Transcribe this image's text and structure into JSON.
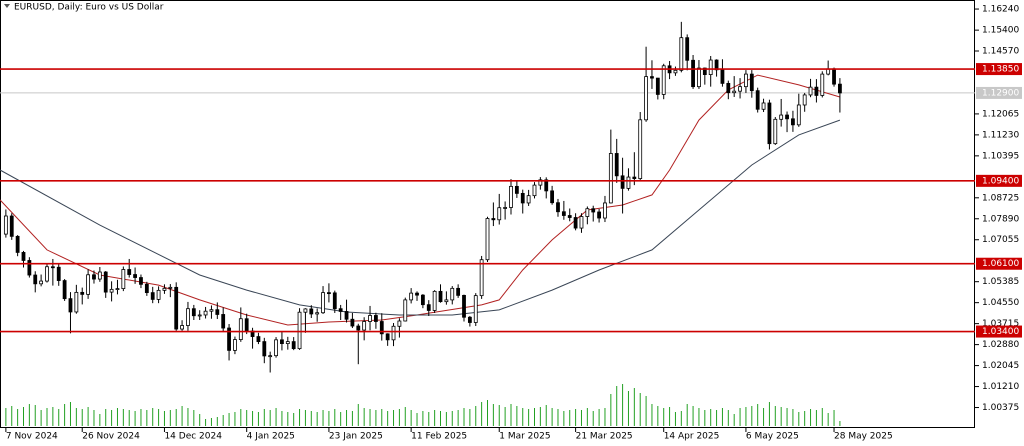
{
  "chart_data": {
    "type": "candlestick",
    "title": "EURUSD, Daily:  Euro vs US Dollar",
    "xlim": [
      -1,
      165
    ],
    "ylim": [
      0.9956,
      1.166
    ],
    "xticks": [
      {
        "value": 0,
        "label": "7 Nov 2024"
      },
      {
        "value": 13,
        "label": "26 Nov 2024"
      },
      {
        "value": 27,
        "label": "14 Dec 2024"
      },
      {
        "value": 41,
        "label": "4 Jan 2025"
      },
      {
        "value": 55,
        "label": "23 Jan 2025"
      },
      {
        "value": 69,
        "label": "11 Feb 2025"
      },
      {
        "value": 84,
        "label": "1 Mar 2025"
      },
      {
        "value": 97,
        "label": "21 Mar 2025"
      },
      {
        "value": 112,
        "label": "14 Apr 2025"
      },
      {
        "value": 126,
        "label": "6 May 2025"
      },
      {
        "value": 141,
        "label": "28 May 2025"
      }
    ],
    "yticks": [
      {
        "value": 1.1624,
        "label": "1.16240"
      },
      {
        "value": 1.154,
        "label": "1.15400"
      },
      {
        "value": 1.1457,
        "label": "1.14570"
      },
      {
        "value": 1.12065,
        "label": "1.12065"
      },
      {
        "value": 1.1123,
        "label": "1.11230"
      },
      {
        "value": 1.10395,
        "label": "1.10395"
      },
      {
        "value": 1.08725,
        "label": "1.08725"
      },
      {
        "value": 1.0789,
        "label": "1.07890"
      },
      {
        "value": 1.07055,
        "label": "1.07055"
      },
      {
        "value": 1.05385,
        "label": "1.05385"
      },
      {
        "value": 1.0455,
        "label": "1.04550"
      },
      {
        "value": 1.03715,
        "label": "1.03715"
      },
      {
        "value": 1.0288,
        "label": "1.02880"
      },
      {
        "value": 1.02045,
        "label": "1.02045"
      },
      {
        "value": 1.0121,
        "label": "1.01210"
      },
      {
        "value": 1.00375,
        "label": "1.00375"
      }
    ],
    "levels": [
      {
        "value": 1.1385,
        "label": "1.13850"
      },
      {
        "value": 1.094,
        "label": "1.09400"
      },
      {
        "value": 1.061,
        "label": "1.06100"
      },
      {
        "value": 1.034,
        "label": "1.03400"
      }
    ],
    "level_color": "#cc0000",
    "price_line": {
      "value": 1.129,
      "label": "1.12900"
    },
    "bull_color": "#ffffff",
    "bear_color": "#000000",
    "volume_color": "#22a022",
    "candles": [
      [
        1.0728,
        1.0826,
        1.0714,
        1.08
      ],
      [
        1.08,
        1.0811,
        1.0705,
        1.0719
      ],
      [
        1.0719,
        1.0724,
        1.064,
        1.0655
      ],
      [
        1.0655,
        1.0661,
        1.0595,
        1.0623
      ],
      [
        1.0623,
        1.0636,
        1.0555,
        1.0565
      ],
      [
        1.0565,
        1.058,
        1.0496,
        1.053
      ],
      [
        1.053,
        1.0567,
        1.052,
        1.0541
      ],
      [
        1.0541,
        1.0609,
        1.0535,
        1.0598
      ],
      [
        1.0598,
        1.0629,
        1.0523,
        1.0596
      ],
      [
        1.0596,
        1.061,
        1.0522,
        1.0543
      ],
      [
        1.0543,
        1.0549,
        1.0462,
        1.0471
      ],
      [
        1.0471,
        1.0497,
        1.0333,
        1.0418
      ],
      [
        1.0418,
        1.0526,
        1.0411,
        1.0496
      ],
      [
        1.0496,
        1.0515,
        1.0448,
        1.0488
      ],
      [
        1.0488,
        1.0588,
        1.047,
        1.0566
      ],
      [
        1.0566,
        1.0583,
        1.0531,
        1.0549
      ],
      [
        1.0549,
        1.0597,
        1.0538,
        1.0577
      ],
      [
        1.0577,
        1.0581,
        1.0474,
        1.0497
      ],
      [
        1.0497,
        1.054,
        1.046,
        1.0508
      ],
      [
        1.0508,
        1.0546,
        1.0488,
        1.0511
      ],
      [
        1.0511,
        1.0599,
        1.0501,
        1.0587
      ],
      [
        1.0587,
        1.0629,
        1.0555,
        1.0567
      ],
      [
        1.0567,
        1.0595,
        1.053,
        1.0555
      ],
      [
        1.0555,
        1.0567,
        1.0513,
        1.0528
      ],
      [
        1.0528,
        1.0538,
        1.0482,
        1.0495
      ],
      [
        1.0495,
        1.0518,
        1.0453,
        1.0468
      ],
      [
        1.0468,
        1.052,
        1.0453,
        1.0504
      ],
      [
        1.0504,
        1.0528,
        1.049,
        1.0512
      ],
      [
        1.0512,
        1.0529,
        1.0477,
        1.0516
      ],
      [
        1.0516,
        1.0536,
        1.0343,
        1.035
      ],
      [
        1.035,
        1.0385,
        1.0343,
        1.0364
      ],
      [
        1.0364,
        1.0458,
        1.0343,
        1.0431
      ],
      [
        1.0431,
        1.0446,
        1.0386,
        1.0403
      ],
      [
        1.0403,
        1.0425,
        1.0386,
        1.0406
      ],
      [
        1.0406,
        1.0438,
        1.0392,
        1.0421
      ],
      [
        1.0421,
        1.0444,
        1.0391,
        1.0427
      ],
      [
        1.0427,
        1.0456,
        1.039,
        1.0408
      ],
      [
        1.0408,
        1.0436,
        1.034,
        1.0354
      ],
      [
        1.0354,
        1.037,
        1.0225,
        1.0265
      ],
      [
        1.0265,
        1.032,
        1.025,
        1.0308
      ],
      [
        1.0308,
        1.0436,
        1.0299,
        1.0391
      ],
      [
        1.0391,
        1.0411,
        1.033,
        1.0342
      ],
      [
        1.0342,
        1.0355,
        1.0272,
        1.032
      ],
      [
        1.032,
        1.0335,
        1.029,
        1.03
      ],
      [
        1.03,
        1.0315,
        1.0214,
        1.0243
      ],
      [
        1.0243,
        1.026,
        1.0177,
        1.0244
      ],
      [
        1.0244,
        1.0318,
        1.0236,
        1.0307
      ],
      [
        1.0307,
        1.0342,
        1.0265,
        1.0292
      ],
      [
        1.0292,
        1.0319,
        1.0268,
        1.03
      ],
      [
        1.03,
        1.0318,
        1.0266,
        1.0272
      ],
      [
        1.0272,
        1.0433,
        1.0267,
        1.0417
      ],
      [
        1.0417,
        1.0433,
        1.0335,
        1.043
      ],
      [
        1.043,
        1.0445,
        1.0394,
        1.041
      ],
      [
        1.041,
        1.0432,
        1.0379,
        1.0415
      ],
      [
        1.0415,
        1.0521,
        1.041,
        1.0495
      ],
      [
        1.0495,
        1.0532,
        1.0456,
        1.0494
      ],
      [
        1.0494,
        1.0503,
        1.0414,
        1.0431
      ],
      [
        1.0431,
        1.0446,
        1.0386,
        1.042
      ],
      [
        1.042,
        1.0467,
        1.0376,
        1.0389
      ],
      [
        1.0389,
        1.0414,
        1.0354,
        1.0362
      ],
      [
        1.0362,
        1.0371,
        1.021,
        1.0346
      ],
      [
        1.0346,
        1.0397,
        1.0305,
        1.038
      ],
      [
        1.038,
        1.0442,
        1.0345,
        1.0404
      ],
      [
        1.0404,
        1.0415,
        1.0351,
        1.038
      ],
      [
        1.038,
        1.0413,
        1.0304,
        1.0331
      ],
      [
        1.0331,
        1.0333,
        1.0283,
        1.0307
      ],
      [
        1.0307,
        1.0374,
        1.0282,
        1.0361
      ],
      [
        1.0361,
        1.0393,
        1.0316,
        1.0382
      ],
      [
        1.0382,
        1.0475,
        1.038,
        1.0466
      ],
      [
        1.0466,
        1.0513,
        1.0452,
        1.0493
      ],
      [
        1.0493,
        1.05,
        1.0462,
        1.0485
      ],
      [
        1.0485,
        1.0489,
        1.0433,
        1.0447
      ],
      [
        1.0447,
        1.0465,
        1.0402,
        1.0424
      ],
      [
        1.0424,
        1.0505,
        1.0414,
        1.05
      ],
      [
        1.05,
        1.0528,
        1.0455,
        1.0459
      ],
      [
        1.0459,
        1.05,
        1.0447,
        1.0466
      ],
      [
        1.0466,
        1.0521,
        1.0448,
        1.0512
      ],
      [
        1.0512,
        1.0528,
        1.0474,
        1.0484
      ],
      [
        1.0484,
        1.0487,
        1.038,
        1.0397
      ],
      [
        1.0397,
        1.0402,
        1.036,
        1.0376
      ],
      [
        1.0376,
        1.0493,
        1.0362,
        1.0483
      ],
      [
        1.0483,
        1.0641,
        1.047,
        1.0626
      ],
      [
        1.0626,
        1.0797,
        1.0617,
        1.079
      ],
      [
        1.079,
        1.0854,
        1.076,
        1.0785
      ],
      [
        1.0785,
        1.0888,
        1.0766,
        1.0833
      ],
      [
        1.0833,
        1.0858,
        1.0786,
        1.0834
      ],
      [
        1.0834,
        1.0947,
        1.0806,
        1.0918
      ],
      [
        1.0918,
        1.094,
        1.0872,
        1.089
      ],
      [
        1.089,
        1.0905,
        1.081,
        1.0852
      ],
      [
        1.0852,
        1.0904,
        1.084,
        1.0881
      ],
      [
        1.0881,
        1.0935,
        1.087,
        1.0923
      ],
      [
        1.0923,
        1.0955,
        1.0905,
        1.0944
      ],
      [
        1.0944,
        1.0954,
        1.087,
        1.09
      ],
      [
        1.09,
        1.092,
        1.0845,
        1.0853
      ],
      [
        1.0853,
        1.0868,
        1.0797,
        1.0817
      ],
      [
        1.0817,
        1.086,
        1.0785,
        1.0802
      ],
      [
        1.0802,
        1.083,
        1.0779,
        1.0794
      ],
      [
        1.0794,
        1.0811,
        1.0743,
        1.0752
      ],
      [
        1.0752,
        1.0811,
        1.0733,
        1.0798
      ],
      [
        1.0798,
        1.0838,
        1.0767,
        1.0829
      ],
      [
        1.0829,
        1.0841,
        1.0778,
        1.0816
      ],
      [
        1.0816,
        1.0828,
        1.0774,
        1.0792
      ],
      [
        1.0792,
        1.088,
        1.0776,
        1.0852
      ],
      [
        1.0852,
        1.1144,
        1.085,
        1.1049
      ],
      [
        1.1049,
        1.1107,
        1.0932,
        1.096
      ],
      [
        1.096,
        1.1032,
        1.081,
        1.091
      ],
      [
        1.091,
        1.099,
        1.0901,
        1.0955
      ],
      [
        1.0955,
        1.1054,
        1.0923,
        1.0949
      ],
      [
        1.0949,
        1.1214,
        1.0939,
        1.1183
      ],
      [
        1.1183,
        1.1474,
        1.1175,
        1.1355
      ],
      [
        1.1355,
        1.142,
        1.1306,
        1.1349
      ],
      [
        1.1349,
        1.135,
        1.1264,
        1.1284
      ],
      [
        1.1284,
        1.1406,
        1.1265,
        1.1398
      ],
      [
        1.1398,
        1.1417,
        1.1345,
        1.137
      ],
      [
        1.137,
        1.1395,
        1.1358,
        1.138
      ],
      [
        1.138,
        1.1573,
        1.1372,
        1.151
      ],
      [
        1.151,
        1.1523,
        1.138,
        1.142
      ],
      [
        1.142,
        1.1441,
        1.1306,
        1.1315
      ],
      [
        1.1315,
        1.1421,
        1.1306,
        1.1389
      ],
      [
        1.1389,
        1.1391,
        1.1323,
        1.1363
      ],
      [
        1.1363,
        1.1437,
        1.1315,
        1.1421
      ],
      [
        1.1421,
        1.1424,
        1.1355,
        1.1382
      ],
      [
        1.1382,
        1.1424,
        1.1315,
        1.1328
      ],
      [
        1.1328,
        1.1339,
        1.1265,
        1.1291
      ],
      [
        1.1291,
        1.1357,
        1.1274,
        1.1297
      ],
      [
        1.1297,
        1.1349,
        1.1268,
        1.1315
      ],
      [
        1.1315,
        1.1381,
        1.129,
        1.1365
      ],
      [
        1.1365,
        1.1381,
        1.1271,
        1.1299
      ],
      [
        1.1299,
        1.1311,
        1.1212,
        1.1225
      ],
      [
        1.1225,
        1.1267,
        1.1214,
        1.125
      ],
      [
        1.125,
        1.1263,
        1.1065,
        1.1088
      ],
      [
        1.1088,
        1.1194,
        1.1083,
        1.1185
      ],
      [
        1.1185,
        1.1266,
        1.1156,
        1.1202
      ],
      [
        1.1202,
        1.1216,
        1.1134,
        1.1187
      ],
      [
        1.1187,
        1.1219,
        1.1135,
        1.1163
      ],
      [
        1.1163,
        1.1287,
        1.1155,
        1.1242
      ],
      [
        1.1242,
        1.129,
        1.1215,
        1.1282
      ],
      [
        1.1282,
        1.1346,
        1.1273,
        1.1313
      ],
      [
        1.1313,
        1.1345,
        1.1252,
        1.128
      ],
      [
        1.128,
        1.1376,
        1.1272,
        1.1365
      ],
      [
        1.1365,
        1.1419,
        1.136,
        1.1386
      ],
      [
        1.1386,
        1.1391,
        1.1315,
        1.1325
      ],
      [
        1.1325,
        1.1349,
        1.1212,
        1.129
      ]
    ],
    "volume": [
      18,
      20,
      17,
      19,
      22,
      21,
      16,
      18,
      19,
      17,
      22,
      24,
      18,
      17,
      19,
      16,
      12,
      17,
      16,
      18,
      17,
      16,
      15,
      17,
      16,
      18,
      17,
      15,
      16,
      17,
      20,
      18,
      16,
      12,
      7,
      8,
      9,
      11,
      13,
      14,
      17,
      16,
      15,
      14,
      17,
      16,
      18,
      15,
      14,
      13,
      17,
      16,
      15,
      14,
      16,
      15,
      17,
      14,
      16,
      15,
      22,
      18,
      17,
      16,
      17,
      15,
      16,
      17,
      19,
      16,
      13,
      15,
      14,
      16,
      15,
      14,
      15,
      16,
      18,
      17,
      20,
      24,
      26,
      22,
      21,
      19,
      22,
      20,
      18,
      17,
      18,
      19,
      21,
      18,
      17,
      15,
      16,
      17,
      16,
      18,
      15,
      17,
      18,
      32,
      40,
      42,
      35,
      38,
      33,
      30,
      22,
      20,
      18,
      19,
      14,
      15,
      22,
      20,
      18,
      16,
      17,
      16,
      18,
      16,
      12,
      18,
      19,
      20,
      22,
      18,
      24,
      20,
      19,
      18,
      17,
      14,
      15,
      17,
      16,
      18,
      13,
      16,
      5
    ],
    "series": [
      {
        "color": "#b22222",
        "x": [
          -1,
          7,
          16,
          26,
          33,
          41,
          48,
          55,
          64,
          70,
          81,
          84,
          88,
          93,
          99,
          105,
          110,
          113,
          118,
          123,
          128,
          135,
          142
        ],
        "values": [
          1.0864,
          1.0665,
          1.0565,
          1.0525,
          1.0466,
          1.0406,
          1.0366,
          1.0378,
          1.0386,
          1.0406,
          1.0446,
          1.0466,
          1.0585,
          1.0705,
          1.0824,
          1.0844,
          1.0884,
          1.0983,
          1.1182,
          1.1302,
          1.1361,
          1.1322,
          1.1274
        ]
      },
      {
        "color": "#3a4656",
        "x": [
          -1,
          16,
          33,
          41,
          50,
          58,
          67,
          76,
          84,
          93,
          101,
          110,
          118,
          127,
          135,
          142
        ],
        "values": [
          1.0983,
          1.0764,
          1.0565,
          1.0505,
          1.0446,
          1.0418,
          1.0406,
          1.0406,
          1.0426,
          1.0505,
          1.0585,
          1.0665,
          1.0824,
          1.1003,
          1.1123,
          1.1182
        ]
      }
    ]
  }
}
